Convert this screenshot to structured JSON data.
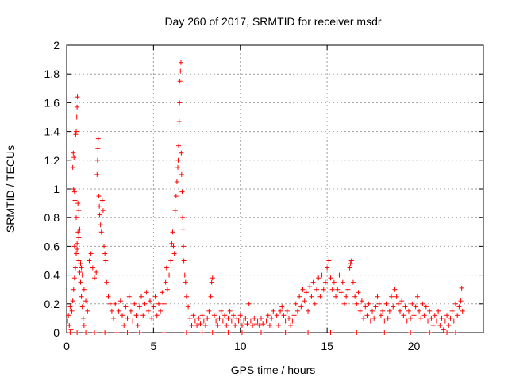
{
  "chart_data": {
    "type": "scatter",
    "title": "Day 260 of 2017, SRMTID for receiver msdr",
    "xlabel": "GPS time / hours",
    "ylabel": "SRMTID / TECUs",
    "xlim": [
      0,
      24
    ],
    "ylim": [
      0,
      2
    ],
    "xticks": [
      0,
      5,
      10,
      15,
      20
    ],
    "xtick_labels": [
      "0",
      "5",
      "10",
      "15",
      "20"
    ],
    "yticks": [
      0,
      0.2,
      0.4,
      0.6,
      0.8,
      1,
      1.2,
      1.4,
      1.6,
      1.8,
      2
    ],
    "ytick_labels": [
      "0",
      "0.2",
      "0.4",
      "0.6",
      "0.8",
      "1",
      "1.2",
      "1.4",
      "1.6",
      "1.8",
      "2"
    ],
    "grid": true,
    "marker": "+",
    "color": "#ff0000",
    "series": [
      {
        "name": "SRMTID",
        "points": [
          [
            0.05,
            0.08
          ],
          [
            0.1,
            0.12
          ],
          [
            0.15,
            0.05
          ],
          [
            0.2,
            0.18
          ],
          [
            0.25,
            0.02
          ],
          [
            0.3,
            0.15
          ],
          [
            0.35,
            0.22
          ],
          [
            0.4,
            0.3
          ],
          [
            0.45,
            0.38
          ],
          [
            0.5,
            0.45
          ],
          [
            0.55,
            0.55
          ],
          [
            0.6,
            0.62
          ],
          [
            0.65,
            0.7
          ],
          [
            0.7,
            0.5
          ],
          [
            0.75,
            0.42
          ],
          [
            0.8,
            0.35
          ],
          [
            0.85,
            0.25
          ],
          [
            0.9,
            0.18
          ],
          [
            0.95,
            0.1
          ],
          [
            1.0,
            0.05
          ],
          [
            0.35,
            1.15
          ],
          [
            0.38,
            1.25
          ],
          [
            0.42,
            1.22
          ],
          [
            0.45,
            0.98
          ],
          [
            0.48,
            0.92
          ],
          [
            0.52,
            1.38
          ],
          [
            0.55,
            1.4
          ],
          [
            0.58,
            1.5
          ],
          [
            0.6,
            1.57
          ],
          [
            0.62,
            1.64
          ],
          [
            0.65,
            0.9
          ],
          [
            0.7,
            0.85
          ],
          [
            0.4,
            1.0
          ],
          [
            0.45,
            0.6
          ],
          [
            0.55,
            0.8
          ],
          [
            0.6,
            0.58
          ],
          [
            0.7,
            0.66
          ],
          [
            0.75,
            0.72
          ],
          [
            0.8,
            0.48
          ],
          [
            0.85,
            0.45
          ],
          [
            0.9,
            0.4
          ],
          [
            1.0,
            0.3
          ],
          [
            1.1,
            0.22
          ],
          [
            1.2,
            0.15
          ],
          [
            1.3,
            0.5
          ],
          [
            1.4,
            0.55
          ],
          [
            1.5,
            0.45
          ],
          [
            1.6,
            0.38
          ],
          [
            1.7,
            0.42
          ],
          [
            1.75,
            1.1
          ],
          [
            1.78,
            1.2
          ],
          [
            1.8,
            1.28
          ],
          [
            1.82,
            1.35
          ],
          [
            1.85,
            0.95
          ],
          [
            1.88,
            0.88
          ],
          [
            1.9,
            0.82
          ],
          [
            1.95,
            0.75
          ],
          [
            2.0,
            0.7
          ],
          [
            2.05,
            0.92
          ],
          [
            2.1,
            0.85
          ],
          [
            2.15,
            0.6
          ],
          [
            2.2,
            0.55
          ],
          [
            2.25,
            0.5
          ],
          [
            2.3,
            0.35
          ],
          [
            2.4,
            0.25
          ],
          [
            2.5,
            0.2
          ],
          [
            2.6,
            0.15
          ],
          [
            2.7,
            0.1
          ],
          [
            2.8,
            0.2
          ],
          [
            2.9,
            0.08
          ],
          [
            3.0,
            0.15
          ],
          [
            3.1,
            0.22
          ],
          [
            3.2,
            0.12
          ],
          [
            3.3,
            0.05
          ],
          [
            3.4,
            0.18
          ],
          [
            3.5,
            0.1
          ],
          [
            3.6,
            0.25
          ],
          [
            3.7,
            0.15
          ],
          [
            3.8,
            0.08
          ],
          [
            3.9,
            0.2
          ],
          [
            4.0,
            0.12
          ],
          [
            4.1,
            0.05
          ],
          [
            4.2,
            0.18
          ],
          [
            4.3,
            0.25
          ],
          [
            4.4,
            0.12
          ],
          [
            4.5,
            0.2
          ],
          [
            4.6,
            0.28
          ],
          [
            4.7,
            0.15
          ],
          [
            4.8,
            0.22
          ],
          [
            4.9,
            0.1
          ],
          [
            5.0,
            0.18
          ],
          [
            5.1,
            0.25
          ],
          [
            5.2,
            0.12
          ],
          [
            5.3,
            0.2
          ],
          [
            5.4,
            0.15
          ],
          [
            5.5,
            0.28
          ],
          [
            5.6,
            0.2
          ],
          [
            5.7,
            0.35
          ],
          [
            5.75,
            0.45
          ],
          [
            5.8,
            0.3
          ],
          [
            5.9,
            0.4
          ],
          [
            6.0,
            0.5
          ],
          [
            6.05,
            0.62
          ],
          [
            6.1,
            0.7
          ],
          [
            6.15,
            0.6
          ],
          [
            6.2,
            0.55
          ],
          [
            6.25,
            0.85
          ],
          [
            6.3,
            0.95
          ],
          [
            6.35,
            1.05
          ],
          [
            6.4,
            1.15
          ],
          [
            6.42,
            1.2
          ],
          [
            6.45,
            1.3
          ],
          [
            6.48,
            1.47
          ],
          [
            6.5,
            1.6
          ],
          [
            6.52,
            1.75
          ],
          [
            6.55,
            1.82
          ],
          [
            6.58,
            1.88
          ],
          [
            6.6,
            1.25
          ],
          [
            6.62,
            1.1
          ],
          [
            6.65,
            0.98
          ],
          [
            6.68,
            0.8
          ],
          [
            6.7,
            0.72
          ],
          [
            6.72,
            0.6
          ],
          [
            6.75,
            0.5
          ],
          [
            6.8,
            0.4
          ],
          [
            6.85,
            0.35
          ],
          [
            6.9,
            0.25
          ],
          [
            7.0,
            0.18
          ],
          [
            7.1,
            0.1
          ],
          [
            7.2,
            0.05
          ],
          [
            7.3,
            0.12
          ],
          [
            7.4,
            0.08
          ],
          [
            7.5,
            0.05
          ],
          [
            7.6,
            0.1
          ],
          [
            7.7,
            0.06
          ],
          [
            7.8,
            0.12
          ],
          [
            7.9,
            0.08
          ],
          [
            8.0,
            0.05
          ],
          [
            8.1,
            0.1
          ],
          [
            8.2,
            0.15
          ],
          [
            8.3,
            0.25
          ],
          [
            8.35,
            0.35
          ],
          [
            8.4,
            0.38
          ],
          [
            8.5,
            0.12
          ],
          [
            8.6,
            0.08
          ],
          [
            8.7,
            0.05
          ],
          [
            8.8,
            0.1
          ],
          [
            8.9,
            0.15
          ],
          [
            9.0,
            0.08
          ],
          [
            9.1,
            0.12
          ],
          [
            9.2,
            0.05
          ],
          [
            9.3,
            0.1
          ],
          [
            9.4,
            0.15
          ],
          [
            9.5,
            0.08
          ],
          [
            9.6,
            0.12
          ],
          [
            9.7,
            0.05
          ],
          [
            9.8,
            0.1
          ],
          [
            9.9,
            0.08
          ],
          [
            10.0,
            0.12
          ],
          [
            10.1,
            0.05
          ],
          [
            10.2,
            0.08
          ],
          [
            10.3,
            0.1
          ],
          [
            10.4,
            0.06
          ],
          [
            10.5,
            0.2
          ],
          [
            10.6,
            0.08
          ],
          [
            10.7,
            0.05
          ],
          [
            10.8,
            0.1
          ],
          [
            10.9,
            0.06
          ],
          [
            11.0,
            0.08
          ],
          [
            11.1,
            0.05
          ],
          [
            11.2,
            0.1
          ],
          [
            11.3,
            0.06
          ],
          [
            11.5,
            0.08
          ],
          [
            11.6,
            0.12
          ],
          [
            11.7,
            0.05
          ],
          [
            11.8,
            0.1
          ],
          [
            11.9,
            0.15
          ],
          [
            12.0,
            0.08
          ],
          [
            12.1,
            0.12
          ],
          [
            12.2,
            0.05
          ],
          [
            12.3,
            0.15
          ],
          [
            12.4,
            0.18
          ],
          [
            12.5,
            0.12
          ],
          [
            12.6,
            0.08
          ],
          [
            12.7,
            0.15
          ],
          [
            12.8,
            0.1
          ],
          [
            12.9,
            0.05
          ],
          [
            13.0,
            0.08
          ],
          [
            13.1,
            0.12
          ],
          [
            13.2,
            0.2
          ],
          [
            13.3,
            0.15
          ],
          [
            13.4,
            0.25
          ],
          [
            13.5,
            0.18
          ],
          [
            13.6,
            0.3
          ],
          [
            13.7,
            0.22
          ],
          [
            13.8,
            0.28
          ],
          [
            13.9,
            0.15
          ],
          [
            14.0,
            0.32
          ],
          [
            14.1,
            0.25
          ],
          [
            14.2,
            0.35
          ],
          [
            14.3,
            0.2
          ],
          [
            14.4,
            0.3
          ],
          [
            14.5,
            0.38
          ],
          [
            14.6,
            0.25
          ],
          [
            14.7,
            0.4
          ],
          [
            14.8,
            0.3
          ],
          [
            14.9,
            0.35
          ],
          [
            15.0,
            0.45
          ],
          [
            15.1,
            0.5
          ],
          [
            15.2,
            0.38
          ],
          [
            15.3,
            0.3
          ],
          [
            15.4,
            0.35
          ],
          [
            15.5,
            0.25
          ],
          [
            15.6,
            0.3
          ],
          [
            15.7,
            0.4
          ],
          [
            15.8,
            0.28
          ],
          [
            15.9,
            0.35
          ],
          [
            16.0,
            0.2
          ],
          [
            16.1,
            0.25
          ],
          [
            16.2,
            0.3
          ],
          [
            16.3,
            0.45
          ],
          [
            16.35,
            0.48
          ],
          [
            16.4,
            0.5
          ],
          [
            16.5,
            0.35
          ],
          [
            16.6,
            0.25
          ],
          [
            16.7,
            0.2
          ],
          [
            16.8,
            0.28
          ],
          [
            16.9,
            0.15
          ],
          [
            17.0,
            0.22
          ],
          [
            17.1,
            0.1
          ],
          [
            17.2,
            0.18
          ],
          [
            17.3,
            0.12
          ],
          [
            17.4,
            0.2
          ],
          [
            17.5,
            0.08
          ],
          [
            17.6,
            0.15
          ],
          [
            17.7,
            0.1
          ],
          [
            17.8,
            0.18
          ],
          [
            17.9,
            0.25
          ],
          [
            18.0,
            0.2
          ],
          [
            18.1,
            0.12
          ],
          [
            18.2,
            0.15
          ],
          [
            18.3,
            0.08
          ],
          [
            18.4,
            0.2
          ],
          [
            18.5,
            0.1
          ],
          [
            18.6,
            0.15
          ],
          [
            18.7,
            0.25
          ],
          [
            18.8,
            0.18
          ],
          [
            18.9,
            0.3
          ],
          [
            19.0,
            0.25
          ],
          [
            19.1,
            0.2
          ],
          [
            19.2,
            0.15
          ],
          [
            19.3,
            0.22
          ],
          [
            19.4,
            0.12
          ],
          [
            19.5,
            0.18
          ],
          [
            19.6,
            0.08
          ],
          [
            19.7,
            0.15
          ],
          [
            19.8,
            0.1
          ],
          [
            19.9,
            0.2
          ],
          [
            20.0,
            0.12
          ],
          [
            20.1,
            0.18
          ],
          [
            20.2,
            0.25
          ],
          [
            20.3,
            0.15
          ],
          [
            20.4,
            0.1
          ],
          [
            20.5,
            0.2
          ],
          [
            20.6,
            0.12
          ],
          [
            20.7,
            0.18
          ],
          [
            20.8,
            0.08
          ],
          [
            20.9,
            0.15
          ],
          [
            21.0,
            0.1
          ],
          [
            21.1,
            0.05
          ],
          [
            21.2,
            0.12
          ],
          [
            21.3,
            0.08
          ],
          [
            21.4,
            0.15
          ],
          [
            21.5,
            0.05
          ],
          [
            21.6,
            0.1
          ],
          [
            21.7,
            0.02
          ],
          [
            21.8,
            0.08
          ],
          [
            21.9,
            0.12
          ],
          [
            22.0,
            0.05
          ],
          [
            22.1,
            0.1
          ],
          [
            22.2,
            0.15
          ],
          [
            22.3,
            0.08
          ],
          [
            22.4,
            0.2
          ],
          [
            22.5,
            0.12
          ],
          [
            22.6,
            0.18
          ],
          [
            22.7,
            0.22
          ],
          [
            22.75,
            0.31
          ],
          [
            22.8,
            0.15
          ],
          [
            0.2,
            0.0
          ],
          [
            0.6,
            0.0
          ],
          [
            1.1,
            0.0
          ],
          [
            1.6,
            0.0
          ],
          [
            2.2,
            0.0
          ],
          [
            2.9,
            0.0
          ],
          [
            3.5,
            0.0
          ],
          [
            4.2,
            0.0
          ],
          [
            5.6,
            0.0
          ],
          [
            6.9,
            0.0
          ],
          [
            7.8,
            0.0
          ],
          [
            8.4,
            0.0
          ],
          [
            9.3,
            0.0
          ],
          [
            10.1,
            0.0
          ],
          [
            11.2,
            0.0
          ],
          [
            12.6,
            0.0
          ],
          [
            13.9,
            0.0
          ],
          [
            15.2,
            0.0
          ],
          [
            16.7,
            0.0
          ],
          [
            18.3,
            0.0
          ],
          [
            19.8,
            0.0
          ],
          [
            20.9,
            0.0
          ],
          [
            21.9,
            0.0
          ],
          [
            22.4,
            0.0
          ]
        ]
      }
    ]
  }
}
